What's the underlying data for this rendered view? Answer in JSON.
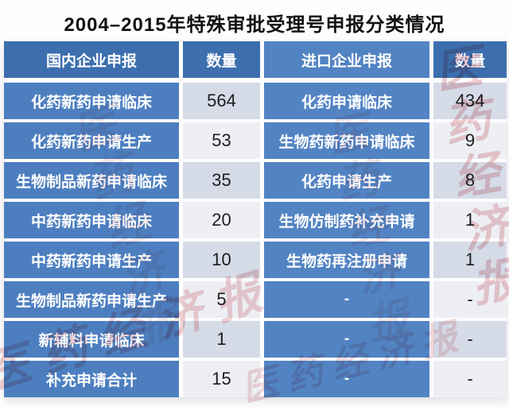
{
  "title": "2004–2015年特殊审批受理号申报分类情况",
  "table": {
    "headers": [
      "国内企业申报",
      "数量",
      "进口企业申报",
      "数量"
    ],
    "rows": [
      {
        "domestic": "化药新药申请临床",
        "domestic_count": "564",
        "imported": "化药申请临床",
        "imported_count": "434"
      },
      {
        "domestic": "化药新药申请生产",
        "domestic_count": "53",
        "imported": "生物药新药申请临床",
        "imported_count": "9"
      },
      {
        "domestic": "生物制品新药申请临床",
        "domestic_count": "35",
        "imported": "化药申请生产",
        "imported_count": "8"
      },
      {
        "domestic": "中药新药申请临床",
        "domestic_count": "20",
        "imported": "生物仿制药补充申请",
        "imported_count": "1"
      },
      {
        "domestic": "中药新药申请生产",
        "domestic_count": "10",
        "imported": "生物药再注册申请",
        "imported_count": "1"
      },
      {
        "domestic": "生物制品新药申请生产",
        "domestic_count": "5",
        "imported": "-",
        "imported_count": "-"
      },
      {
        "domestic": "新辅料申请临床",
        "domestic_count": "1",
        "imported": "-",
        "imported_count": "-"
      },
      {
        "domestic": "补充申请合计",
        "domestic_count": "15",
        "imported": "-",
        "imported_count": "-"
      }
    ]
  },
  "watermark": {
    "text": "医药经济报",
    "color": "#c84a55"
  },
  "colors": {
    "header_bg": "#3d6fae",
    "header_import_bg": "#5283c2",
    "label_bg": "#4d7fc0",
    "import_label_bg": "#5284c4",
    "num_cell_odd": "#d5dbe7",
    "num_cell_even": "#edeff4",
    "title_text": "#121212",
    "cell_text": "#ffffff",
    "number_text": "#1d1d1f"
  },
  "chart_data": {
    "type": "table",
    "title": "2004–2015年特殊审批受理号申报分类情况",
    "columns": [
      "国内企业申报",
      "数量",
      "进口企业申报",
      "数量"
    ],
    "rows": [
      [
        "化药新药申请临床",
        564,
        "化药申请临床",
        434
      ],
      [
        "化药新药申请生产",
        53,
        "生物药新药申请临床",
        9
      ],
      [
        "生物制品新药申请临床",
        35,
        "化药申请生产",
        8
      ],
      [
        "中药新药申请临床",
        20,
        "生物仿制药补充申请",
        1
      ],
      [
        "中药新药申请生产",
        10,
        "生物药再注册申请",
        1
      ],
      [
        "生物制品新药申请生产",
        5,
        "-",
        "-"
      ],
      [
        "新辅料申请临床",
        1,
        "-",
        "-"
      ],
      [
        "补充申请合计",
        15,
        "-",
        "-"
      ]
    ]
  }
}
